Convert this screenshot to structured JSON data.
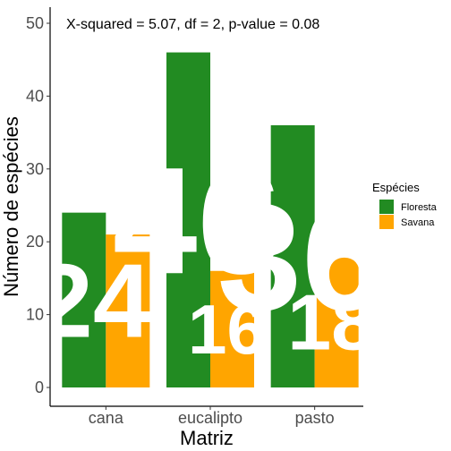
{
  "chart_data": {
    "type": "bar",
    "categories": [
      "cana",
      "eucalipto",
      "pasto"
    ],
    "series": [
      {
        "name": "Floresta",
        "values": [
          24,
          46,
          36
        ],
        "color": "#228B22"
      },
      {
        "name": "Savana",
        "values": [
          21,
          16,
          18
        ],
        "color": "#FFA500"
      }
    ],
    "bar_labels": [
      {
        "category": "cana",
        "text": "24"
      },
      {
        "category": "eucalipto",
        "text": "46"
      },
      {
        "category": "eucalipto",
        "text": "16"
      },
      {
        "category": "pasto",
        "text": "36"
      },
      {
        "category": "pasto",
        "text": "18"
      }
    ],
    "xlabel": "Matriz",
    "ylabel": "Número de espécies",
    "ylim": [
      0,
      50
    ],
    "yticks": [
      0,
      10,
      20,
      30,
      40,
      50
    ],
    "annotation": "X-squared = 5.07, df = 2, p-value = 0.08",
    "legend": {
      "title": "Espécies",
      "position": "right"
    },
    "grid": false
  }
}
